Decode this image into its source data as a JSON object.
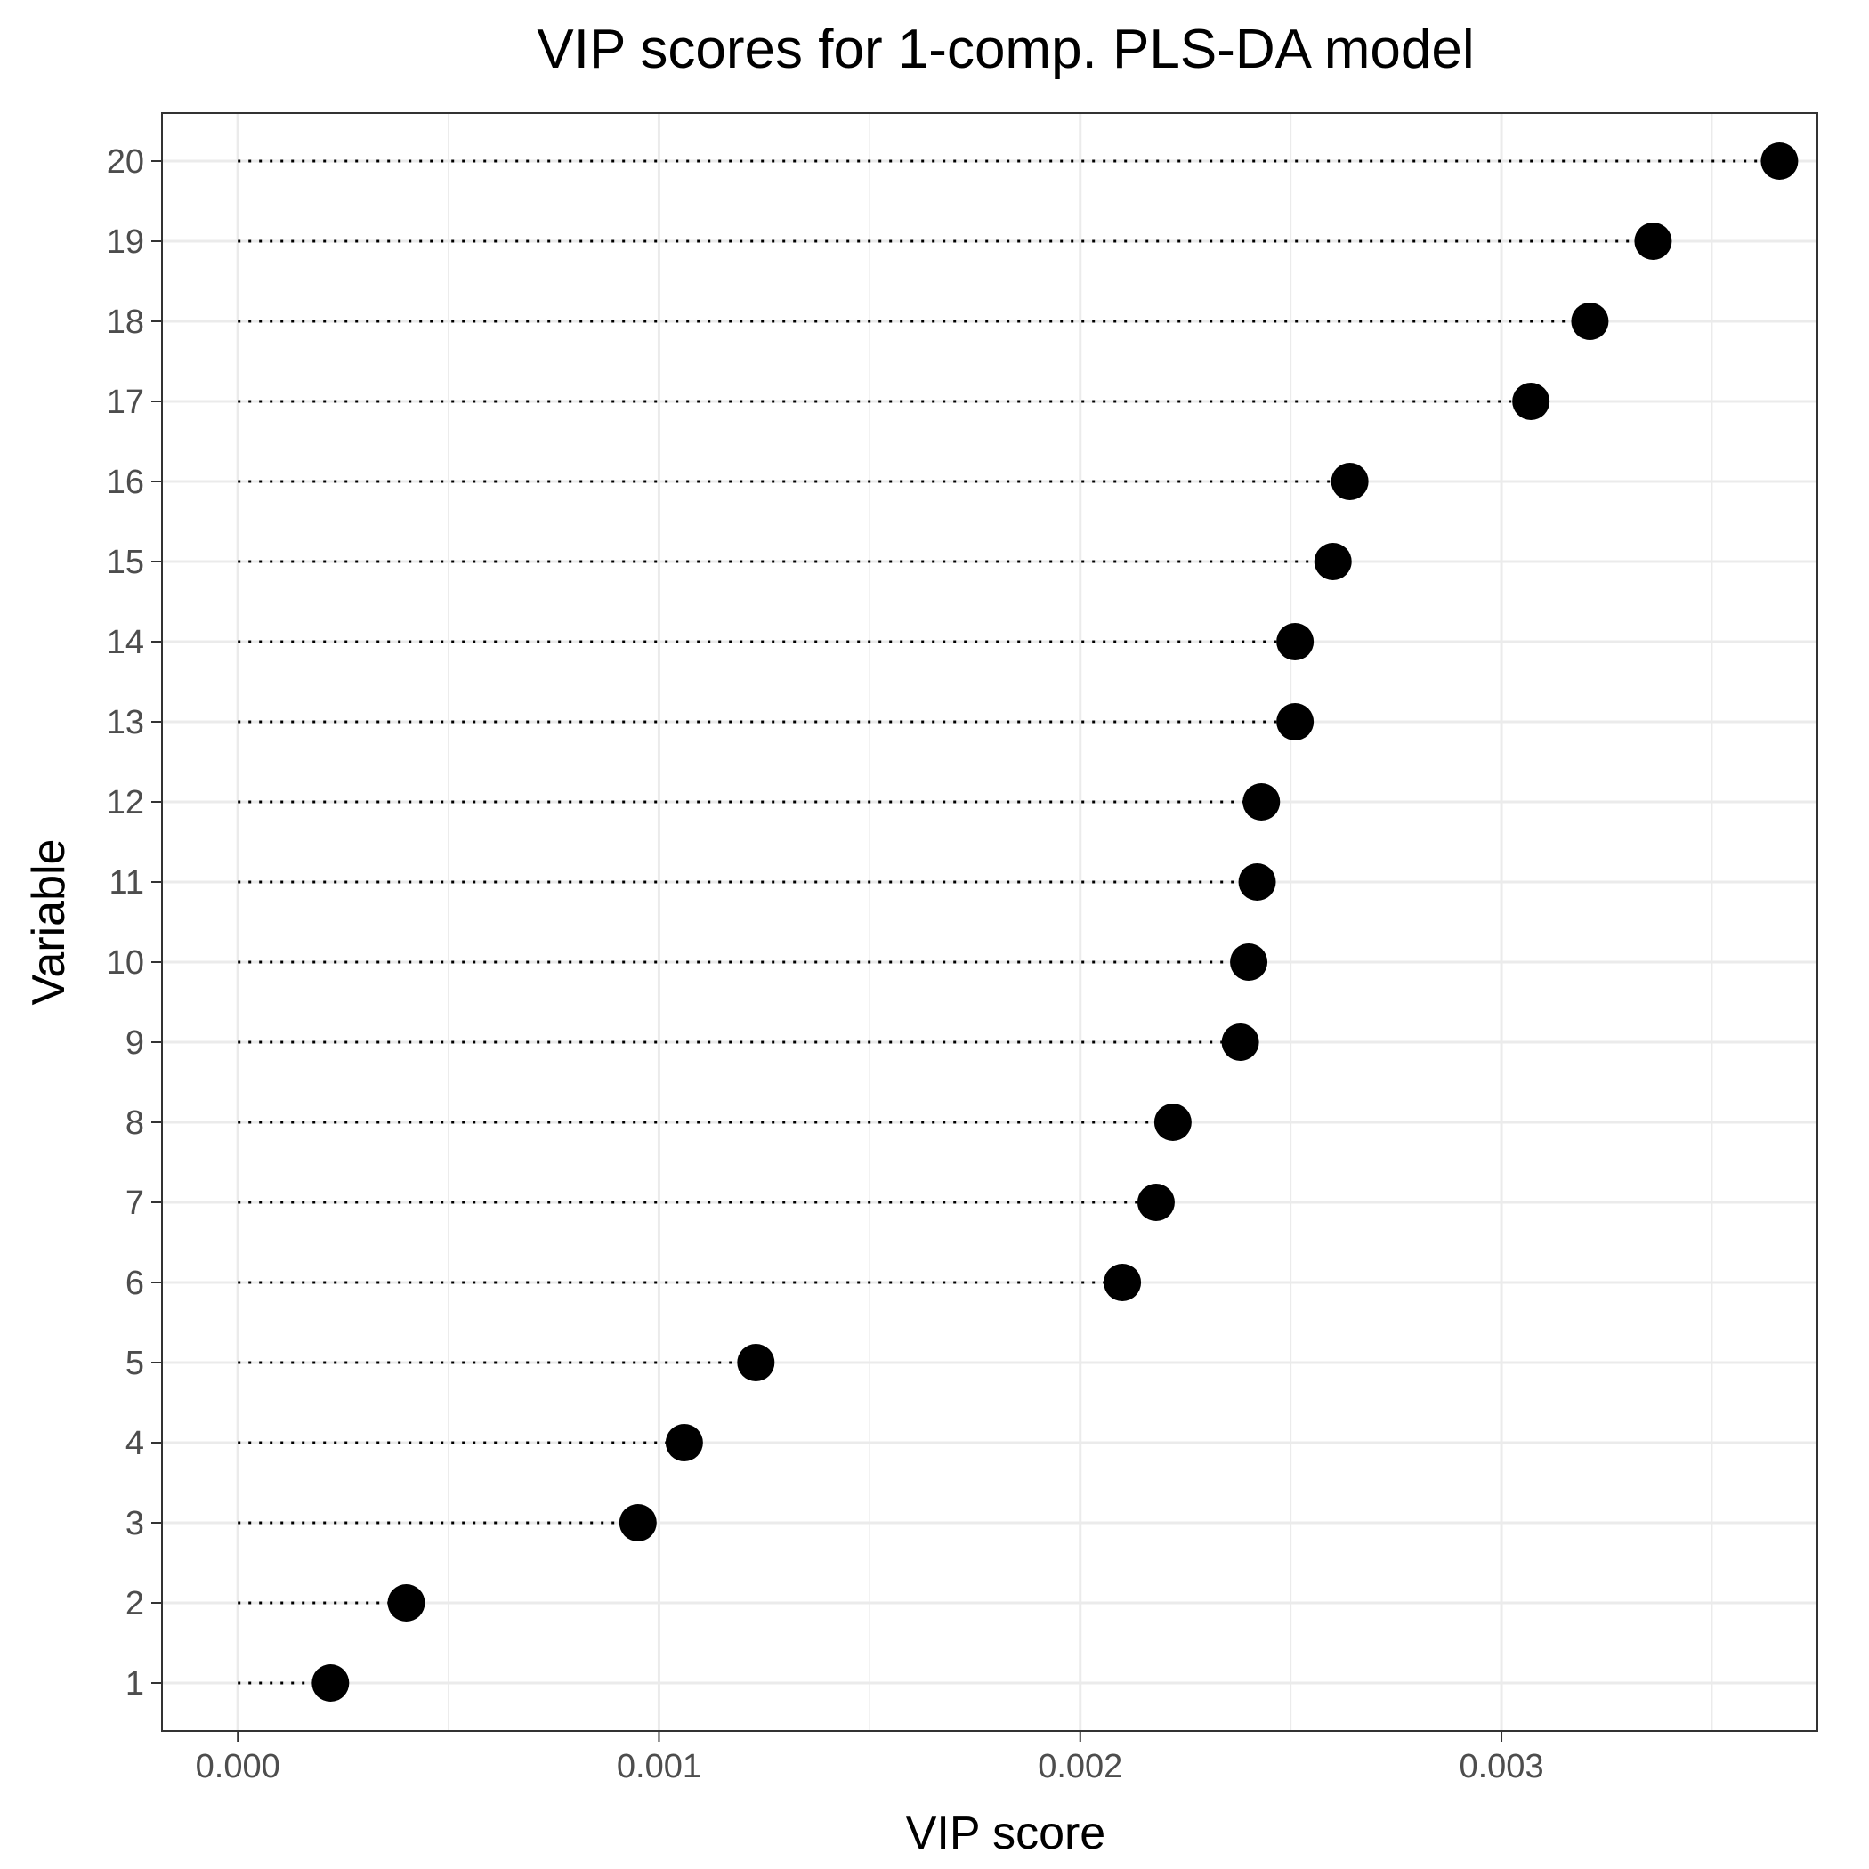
{
  "chart_data": {
    "type": "scatter",
    "subtype": "dot-plot",
    "title": "VIP scores for 1-comp. PLS-DA model",
    "xlabel": "VIP score",
    "ylabel": "Variable",
    "xlim": [
      -0.00018,
      0.00375
    ],
    "ylim": [
      0.4,
      20.6
    ],
    "x_ticks": [
      0.0,
      0.001,
      0.002,
      0.003
    ],
    "x_tick_labels": [
      "0.000",
      "0.001",
      "0.002",
      "0.003"
    ],
    "y_ticks": [
      1,
      2,
      3,
      4,
      5,
      6,
      7,
      8,
      9,
      10,
      11,
      12,
      13,
      14,
      15,
      16,
      17,
      18,
      19,
      20
    ],
    "y_tick_labels": [
      "1",
      "2",
      "3",
      "4",
      "5",
      "6",
      "7",
      "8",
      "9",
      "10",
      "11",
      "12",
      "13",
      "14",
      "15",
      "16",
      "17",
      "18",
      "19",
      "20"
    ],
    "grid": true,
    "segments": "dotted lines from 0 to each point",
    "colors": {
      "points": "#000000",
      "grid": "#ebebeb",
      "panel_border": "#333333",
      "tick_text": "#4d4d4d"
    },
    "series": [
      {
        "variables": [
          1,
          2,
          3,
          4,
          5,
          6,
          7,
          8,
          9,
          10,
          11,
          12,
          13,
          14,
          15,
          16,
          17,
          18,
          19,
          20
        ],
        "values": [
          0.00022,
          0.0004,
          0.00095,
          0.00106,
          0.00123,
          0.0021,
          0.00218,
          0.00222,
          0.00238,
          0.0024,
          0.00242,
          0.00243,
          0.00251,
          0.00251,
          0.0026,
          0.00264,
          0.00307,
          0.00321,
          0.00336,
          0.00366
        ]
      }
    ]
  }
}
